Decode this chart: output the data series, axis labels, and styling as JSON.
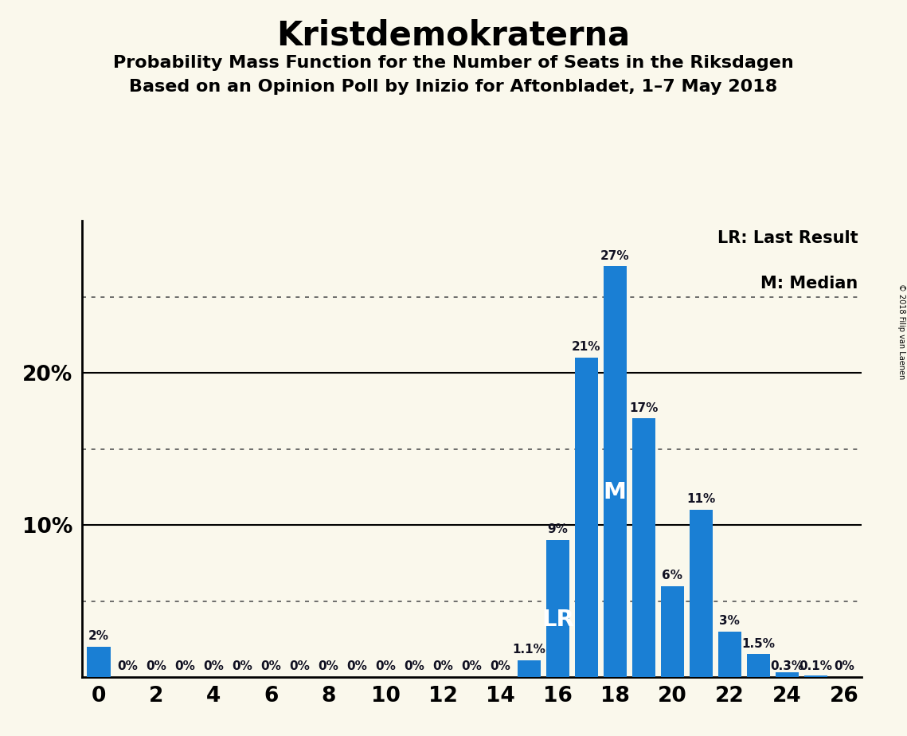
{
  "title": "Kristdemokraterna",
  "subtitle1": "Probability Mass Function for the Number of Seats in the Riksdagen",
  "subtitle2": "Based on an Opinion Poll by Inizio for Aftonbladet, 1–7 May 2018",
  "copyright": "© 2018 Filip van Laenen",
  "background_color": "#faf8ec",
  "bar_color": "#1a7fd4",
  "seats": [
    0,
    1,
    2,
    3,
    4,
    5,
    6,
    7,
    8,
    9,
    10,
    11,
    12,
    13,
    14,
    15,
    16,
    17,
    18,
    19,
    20,
    21,
    22,
    23,
    24,
    25,
    26
  ],
  "probabilities": [
    2.0,
    0.0,
    0.0,
    0.0,
    0.0,
    0.0,
    0.0,
    0.0,
    0.0,
    0.0,
    0.0,
    0.0,
    0.0,
    0.0,
    0.0,
    1.1,
    9.0,
    21.0,
    27.0,
    17.0,
    6.0,
    11.0,
    3.0,
    1.5,
    0.3,
    0.1,
    0.0
  ],
  "labels": [
    "2%",
    "0%",
    "0%",
    "0%",
    "0%",
    "0%",
    "0%",
    "0%",
    "0%",
    "0%",
    "0%",
    "0%",
    "0%",
    "0%",
    "0%",
    "1.1%",
    "9%",
    "21%",
    "27%",
    "17%",
    "6%",
    "11%",
    "3%",
    "1.5%",
    "0.3%",
    "0.1%",
    "0%"
  ],
  "lr_seat": 16,
  "median_seat": 18,
  "xlim": [
    -0.6,
    26.6
  ],
  "ylim": [
    0,
    30
  ],
  "solid_yticks": [
    10,
    20
  ],
  "dotted_yticks": [
    5,
    15,
    25
  ],
  "xticks": [
    0,
    2,
    4,
    6,
    8,
    10,
    12,
    14,
    16,
    18,
    20,
    22,
    24,
    26
  ],
  "legend_lr": "LR: Last Result",
  "legend_m": "M: Median",
  "title_fontsize": 30,
  "subtitle_fontsize": 16,
  "bar_label_fontsize": 11,
  "axis_tick_fontsize": 19
}
